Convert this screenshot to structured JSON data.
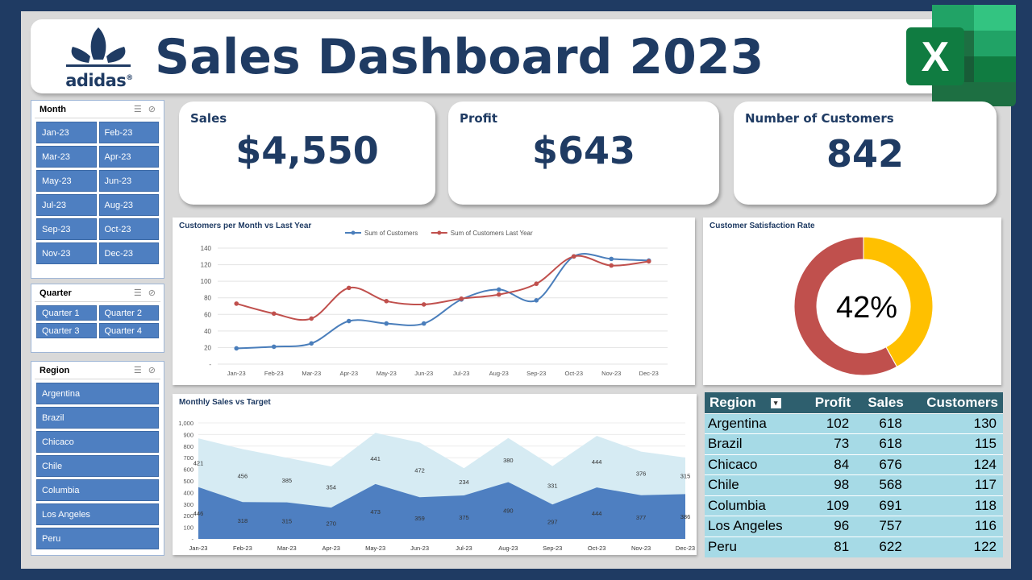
{
  "header": {
    "logo_text": "adidas",
    "logo_mark": "®",
    "title": "Sales Dashboard 2023",
    "app_icon": "excel-icon"
  },
  "slicers": {
    "month": {
      "title": "Month",
      "items": [
        "Jan-23",
        "Feb-23",
        "Mar-23",
        "Apr-23",
        "May-23",
        "Jun-23",
        "Jul-23",
        "Aug-23",
        "Sep-23",
        "Oct-23",
        "Nov-23",
        "Dec-23"
      ]
    },
    "quarter": {
      "title": "Quarter",
      "items": [
        "Quarter 1",
        "Quarter 2",
        "Quarter 3",
        "Quarter 4"
      ]
    },
    "region": {
      "title": "Region",
      "items": [
        "Argentina",
        "Brazil",
        "Chicaco",
        "Chile",
        "Columbia",
        "Los Angeles",
        "Peru"
      ]
    }
  },
  "kpis": {
    "sales": {
      "label": "Sales",
      "value": "$4,550"
    },
    "profit": {
      "label": "Profit",
      "value": "$643"
    },
    "customers": {
      "label": "Number of Customers",
      "value": "842"
    }
  },
  "chart_data": [
    {
      "type": "line",
      "title": "Customers per Month vs Last Year",
      "categories": [
        "Jan-23",
        "Feb-23",
        "Mar-23",
        "Apr-23",
        "May-23",
        "Jun-23",
        "Jul-23",
        "Aug-23",
        "Sep-23",
        "Oct-23",
        "Nov-23",
        "Dec-23"
      ],
      "series": [
        {
          "name": "Sum of Customers",
          "color": "#4a7ebb",
          "values": [
            19,
            21,
            25,
            52,
            49,
            49,
            78,
            90,
            77,
            130,
            127,
            125
          ]
        },
        {
          "name": "Sum of Customers Last Year",
          "color": "#c0504d",
          "values": [
            73,
            61,
            55,
            92,
            76,
            72,
            79,
            84,
            97,
            130,
            119,
            124
          ]
        }
      ],
      "ylim": [
        0,
        140
      ],
      "yticks": [
        "-",
        "20",
        "40",
        "60",
        "80",
        "100",
        "120",
        "140"
      ],
      "legend": "top"
    },
    {
      "type": "area",
      "title": "Monthly Sales vs Target",
      "categories": [
        "Jan-23",
        "Feb-23",
        "Mar-23",
        "Apr-23",
        "May-23",
        "Jun-23",
        "Jul-23",
        "Aug-23",
        "Sep-23",
        "Oct-23",
        "Nov-23",
        "Dec-23"
      ],
      "series": [
        {
          "color": "#4e7fc1",
          "values": [
            446,
            318,
            315,
            270,
            473,
            359,
            375,
            490,
            297,
            444,
            377,
            386
          ]
        },
        {
          "color": "#d6ebf3",
          "values": [
            421,
            456,
            385,
            354,
            441,
            472,
            234,
            380,
            331,
            444,
            376,
            315
          ]
        }
      ],
      "stacked": true,
      "ylim": [
        0,
        1000
      ],
      "yticks": [
        "-",
        "100",
        "200",
        "300",
        "400",
        "500",
        "600",
        "700",
        "800",
        "900",
        "1,000"
      ]
    },
    {
      "type": "pie",
      "title": "Customer Satisfaction Rate",
      "center_label": "42%",
      "slices": [
        {
          "value": 42,
          "color": "#ffc000"
        },
        {
          "value": 58,
          "color": "#c0504d"
        }
      ]
    }
  ],
  "region_table": {
    "headers": [
      "Region",
      "Profit",
      "Sales",
      "Customers"
    ],
    "rows": [
      [
        "Argentina",
        "102",
        "618",
        "130"
      ],
      [
        "Brazil",
        "73",
        "618",
        "115"
      ],
      [
        "Chicaco",
        "84",
        "676",
        "124"
      ],
      [
        "Chile",
        "98",
        "568",
        "117"
      ],
      [
        "Columbia",
        "109",
        "691",
        "118"
      ],
      [
        "Los Angeles",
        "96",
        "757",
        "116"
      ],
      [
        "Peru",
        "81",
        "622",
        "122"
      ]
    ]
  }
}
